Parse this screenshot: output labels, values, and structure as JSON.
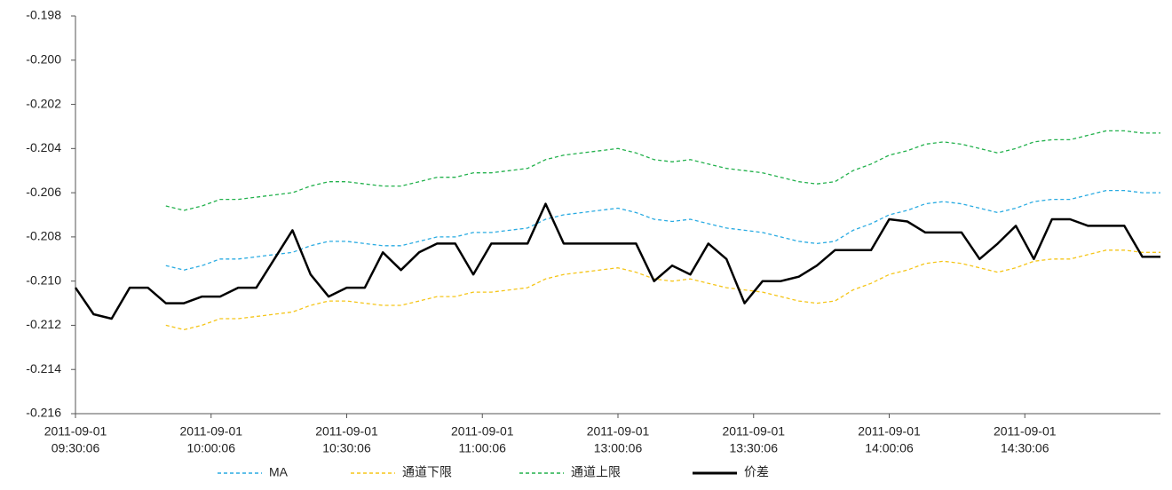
{
  "chart_data": {
    "type": "line",
    "x": [
      0,
      4,
      8,
      12,
      16,
      20,
      24,
      28,
      32,
      36,
      40,
      44,
      48,
      52,
      56,
      60,
      64,
      68,
      72,
      76,
      80,
      84,
      88,
      92,
      96,
      100,
      104,
      108,
      112,
      116,
      120,
      124,
      128,
      132,
      136,
      140,
      144,
      148,
      152,
      156,
      160,
      164,
      168,
      172,
      176,
      180,
      184,
      188,
      192,
      196,
      200,
      204,
      208,
      212,
      216,
      220,
      224,
      228,
      232,
      236,
      240
    ],
    "xlim": [
      0,
      240
    ],
    "xticks": [
      {
        "value": 0,
        "label": [
          "2011-09-01",
          "09:30:06"
        ]
      },
      {
        "value": 30,
        "label": [
          "2011-09-01",
          "10:00:06"
        ]
      },
      {
        "value": 60,
        "label": [
          "2011-09-01",
          "10:30:06"
        ]
      },
      {
        "value": 90,
        "label": [
          "2011-09-01",
          "11:00:06"
        ]
      },
      {
        "value": 120,
        "label": [
          "2011-09-01",
          "13:00:06"
        ]
      },
      {
        "value": 150,
        "label": [
          "2011-09-01",
          "13:30:06"
        ]
      },
      {
        "value": 180,
        "label": [
          "2011-09-01",
          "14:00:06"
        ]
      },
      {
        "value": 210,
        "label": [
          "2011-09-01",
          "14:30:06"
        ]
      }
    ],
    "ylim": [
      -0.216,
      -0.198
    ],
    "yticks": [
      -0.216,
      -0.214,
      -0.212,
      {
        "value": -0.21,
        "label": "-0.210"
      },
      -0.208,
      -0.206,
      -0.204,
      -0.202,
      {
        "value": -0.2,
        "label": "-0.200"
      },
      -0.198
    ],
    "grid": false,
    "legend": "bottom",
    "series": [
      {
        "name": "MA",
        "color": "#29abe2",
        "dash": true,
        "values": [
          null,
          null,
          null,
          null,
          null,
          -0.2093,
          -0.2095,
          -0.2093,
          -0.209,
          -0.209,
          -0.2089,
          -0.2088,
          -0.2087,
          -0.2084,
          -0.2082,
          -0.2082,
          -0.2083,
          -0.2084,
          -0.2084,
          -0.2082,
          -0.208,
          -0.208,
          -0.2078,
          -0.2078,
          -0.2077,
          -0.2076,
          -0.2072,
          -0.207,
          -0.2069,
          -0.2068,
          -0.2067,
          -0.2069,
          -0.2072,
          -0.2073,
          -0.2072,
          -0.2074,
          -0.2076,
          -0.2077,
          -0.2078,
          -0.208,
          -0.2082,
          -0.2083,
          -0.2082,
          -0.2077,
          -0.2074,
          -0.207,
          -0.2068,
          -0.2065,
          -0.2064,
          -0.2065,
          -0.2067,
          -0.2069,
          -0.2067,
          -0.2064,
          -0.2063,
          -0.2063,
          -0.2061,
          -0.2059,
          -0.2059,
          -0.206,
          -0.206
        ]
      },
      {
        "name": "通道下限",
        "color": "#f5c518",
        "dash": true,
        "values": [
          null,
          null,
          null,
          null,
          null,
          -0.212,
          -0.2122,
          -0.212,
          -0.2117,
          -0.2117,
          -0.2116,
          -0.2115,
          -0.2114,
          -0.2111,
          -0.2109,
          -0.2109,
          -0.211,
          -0.2111,
          -0.2111,
          -0.2109,
          -0.2107,
          -0.2107,
          -0.2105,
          -0.2105,
          -0.2104,
          -0.2103,
          -0.2099,
          -0.2097,
          -0.2096,
          -0.2095,
          -0.2094,
          -0.2096,
          -0.2099,
          -0.21,
          -0.2099,
          -0.2101,
          -0.2103,
          -0.2104,
          -0.2105,
          -0.2107,
          -0.2109,
          -0.211,
          -0.2109,
          -0.2104,
          -0.2101,
          -0.2097,
          -0.2095,
          -0.2092,
          -0.2091,
          -0.2092,
          -0.2094,
          -0.2096,
          -0.2094,
          -0.2091,
          -0.209,
          -0.209,
          -0.2088,
          -0.2086,
          -0.2086,
          -0.2087,
          -0.2087
        ]
      },
      {
        "name": "通道上限",
        "color": "#22b14c",
        "dash": true,
        "values": [
          null,
          null,
          null,
          null,
          null,
          -0.2066,
          -0.2068,
          -0.2066,
          -0.2063,
          -0.2063,
          -0.2062,
          -0.2061,
          -0.206,
          -0.2057,
          -0.2055,
          -0.2055,
          -0.2056,
          -0.2057,
          -0.2057,
          -0.2055,
          -0.2053,
          -0.2053,
          -0.2051,
          -0.2051,
          -0.205,
          -0.2049,
          -0.2045,
          -0.2043,
          -0.2042,
          -0.2041,
          -0.204,
          -0.2042,
          -0.2045,
          -0.2046,
          -0.2045,
          -0.2047,
          -0.2049,
          -0.205,
          -0.2051,
          -0.2053,
          -0.2055,
          -0.2056,
          -0.2055,
          -0.205,
          -0.2047,
          -0.2043,
          -0.2041,
          -0.2038,
          -0.2037,
          -0.2038,
          -0.204,
          -0.2042,
          -0.204,
          -0.2037,
          -0.2036,
          -0.2036,
          -0.2034,
          -0.2032,
          -0.2032,
          -0.2033,
          -0.2033
        ]
      },
      {
        "name": "价差",
        "color": "#000000",
        "dash": false,
        "values": [
          -0.2103,
          -0.2115,
          -0.2117,
          -0.2103,
          -0.2103,
          -0.211,
          -0.211,
          -0.2107,
          -0.2107,
          -0.2103,
          -0.2103,
          -0.209,
          -0.2077,
          -0.2097,
          -0.2107,
          -0.2103,
          -0.2103,
          -0.2087,
          -0.2095,
          -0.2087,
          -0.2083,
          -0.2083,
          -0.2097,
          -0.2083,
          -0.2083,
          -0.2083,
          -0.2065,
          -0.2083,
          -0.2083,
          -0.2083,
          -0.2083,
          -0.2083,
          -0.21,
          -0.2093,
          -0.2097,
          -0.2083,
          -0.209,
          -0.211,
          -0.21,
          -0.21,
          -0.2098,
          -0.2093,
          -0.2086,
          -0.2086,
          -0.2086,
          -0.2072,
          -0.2073,
          -0.2078,
          -0.2078,
          -0.2078,
          -0.209,
          -0.2083,
          -0.2075,
          -0.209,
          -0.2072,
          -0.2072,
          -0.2075,
          -0.2075,
          -0.2075,
          -0.2089,
          -0.2089
        ]
      }
    ]
  }
}
